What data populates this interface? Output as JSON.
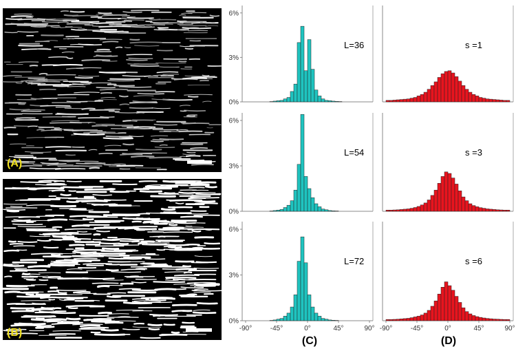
{
  "image_labels": {
    "a": "(A)",
    "b": "(B)"
  },
  "column_labels": {
    "c": "(C)",
    "d": "(D)"
  },
  "colors": {
    "cyan": "#1fc4c0",
    "red": "#e8141e",
    "yellow": "#f0e020"
  },
  "chart_data": [
    {
      "type": "bar",
      "panel": "C1",
      "annotation": "L=36",
      "x": [
        -90,
        -85,
        -80,
        -75,
        -70,
        -65,
        -60,
        -55,
        -50,
        -45,
        -40,
        -35,
        -30,
        -25,
        -20,
        -15,
        -10,
        -5,
        0,
        5,
        10,
        15,
        20,
        25,
        30,
        35,
        40,
        45,
        50,
        55,
        60,
        65,
        70,
        75,
        80,
        85
      ],
      "values": [
        0,
        0,
        0,
        0,
        0,
        0,
        0,
        0.02,
        0.05,
        0.08,
        0.1,
        0.2,
        0.3,
        0.7,
        1.2,
        4.0,
        5.1,
        2.1,
        4.2,
        2.2,
        0.8,
        0.4,
        0.2,
        0.1,
        0.08,
        0.05,
        0.03,
        0.02,
        0,
        0,
        0,
        0,
        0,
        0,
        0,
        0
      ],
      "yticks": [
        "0%",
        "3%",
        "6%"
      ],
      "ylim": [
        0,
        6.5
      ],
      "xlim": [
        -95,
        95
      ]
    },
    {
      "type": "bar",
      "panel": "C2",
      "annotation": "L=54",
      "x": [
        -90,
        -85,
        -80,
        -75,
        -70,
        -65,
        -60,
        -55,
        -50,
        -45,
        -40,
        -35,
        -30,
        -25,
        -20,
        -15,
        -10,
        -5,
        0,
        5,
        10,
        15,
        20,
        25,
        30,
        35,
        40,
        45,
        50,
        55,
        60,
        65,
        70,
        75,
        80,
        85
      ],
      "values": [
        0,
        0,
        0,
        0,
        0,
        0,
        0,
        0.02,
        0.05,
        0.08,
        0.12,
        0.25,
        0.4,
        0.7,
        1.4,
        3.1,
        6.4,
        2.3,
        1.5,
        0.9,
        0.5,
        0.3,
        0.15,
        0.1,
        0.05,
        0.03,
        0.02,
        0,
        0,
        0,
        0,
        0,
        0,
        0,
        0,
        0
      ],
      "yticks": [
        "0%",
        "3%",
        "6%"
      ],
      "ylim": [
        0,
        6.5
      ],
      "xlim": [
        -95,
        95
      ]
    },
    {
      "type": "bar",
      "panel": "C3",
      "annotation": "L=72",
      "x": [
        -90,
        -85,
        -80,
        -75,
        -70,
        -65,
        -60,
        -55,
        -50,
        -45,
        -40,
        -35,
        -30,
        -25,
        -20,
        -15,
        -10,
        -5,
        0,
        5,
        10,
        15,
        20,
        25,
        30,
        35,
        40,
        45,
        50,
        55,
        60,
        65,
        70,
        75,
        80,
        85
      ],
      "values": [
        0,
        0,
        0,
        0,
        0,
        0,
        0,
        0.02,
        0.05,
        0.1,
        0.15,
        0.3,
        0.5,
        0.9,
        1.7,
        3.9,
        5.5,
        3.8,
        1.7,
        0.9,
        0.5,
        0.3,
        0.15,
        0.1,
        0.05,
        0.03,
        0.02,
        0,
        0,
        0,
        0,
        0,
        0,
        0,
        0,
        0
      ],
      "yticks": [
        "0%",
        "3%",
        "6%"
      ],
      "ylim": [
        0,
        6.5
      ],
      "xlim": [
        -95,
        95
      ],
      "xticks": [
        "-90°",
        "-45°",
        "0°",
        "45°",
        "90°"
      ]
    },
    {
      "type": "bar",
      "panel": "D1",
      "annotation": "s =1",
      "x": [
        -90,
        -85,
        -80,
        -75,
        -70,
        -65,
        -60,
        -55,
        -50,
        -45,
        -40,
        -35,
        -30,
        -25,
        -20,
        -15,
        -10,
        -5,
        0,
        5,
        10,
        15,
        20,
        25,
        30,
        35,
        40,
        45,
        50,
        55,
        60,
        65,
        70,
        75,
        80,
        85
      ],
      "values": [
        0.1,
        0.1,
        0.12,
        0.14,
        0.16,
        0.18,
        0.2,
        0.25,
        0.3,
        0.4,
        0.5,
        0.65,
        0.85,
        1.1,
        1.35,
        1.65,
        1.9,
        2.05,
        2.1,
        1.95,
        1.7,
        1.4,
        1.1,
        0.85,
        0.65,
        0.5,
        0.4,
        0.3,
        0.25,
        0.2,
        0.18,
        0.16,
        0.14,
        0.12,
        0.1,
        0.1
      ],
      "ylim": [
        0,
        6.5
      ],
      "xlim": [
        -95,
        95
      ]
    },
    {
      "type": "bar",
      "panel": "D2",
      "annotation": "s =3",
      "x": [
        -90,
        -85,
        -80,
        -75,
        -70,
        -65,
        -60,
        -55,
        -50,
        -45,
        -40,
        -35,
        -30,
        -25,
        -20,
        -15,
        -10,
        -5,
        0,
        5,
        10,
        15,
        20,
        25,
        30,
        35,
        40,
        45,
        50,
        55,
        60,
        65,
        70,
        75,
        80,
        85
      ],
      "values": [
        0.08,
        0.08,
        0.09,
        0.1,
        0.12,
        0.14,
        0.16,
        0.2,
        0.25,
        0.32,
        0.42,
        0.55,
        0.75,
        1.05,
        1.4,
        1.85,
        2.3,
        2.6,
        2.5,
        2.2,
        1.8,
        1.35,
        0.95,
        0.7,
        0.5,
        0.38,
        0.3,
        0.24,
        0.2,
        0.16,
        0.14,
        0.12,
        0.1,
        0.09,
        0.08,
        0.08
      ],
      "ylim": [
        0,
        6.5
      ],
      "xlim": [
        -95,
        95
      ]
    },
    {
      "type": "bar",
      "panel": "D3",
      "annotation": "s =6",
      "x": [
        -90,
        -85,
        -80,
        -75,
        -70,
        -65,
        -60,
        -55,
        -50,
        -45,
        -40,
        -35,
        -30,
        -25,
        -20,
        -15,
        -10,
        -5,
        0,
        5,
        10,
        15,
        20,
        25,
        30,
        35,
        40,
        45,
        50,
        55,
        60,
        65,
        70,
        75,
        80,
        85
      ],
      "values": [
        0.08,
        0.08,
        0.09,
        0.1,
        0.12,
        0.14,
        0.16,
        0.2,
        0.25,
        0.3,
        0.38,
        0.5,
        0.68,
        0.95,
        1.3,
        1.75,
        2.2,
        2.55,
        2.3,
        2.0,
        1.6,
        1.2,
        0.85,
        0.6,
        0.45,
        0.34,
        0.27,
        0.22,
        0.18,
        0.15,
        0.13,
        0.11,
        0.1,
        0.09,
        0.08,
        0.08
      ],
      "ylim": [
        0,
        6.5
      ],
      "xlim": [
        -95,
        95
      ],
      "xticks": [
        "-90°",
        "-45°",
        "0°",
        "45°",
        "90°"
      ]
    }
  ]
}
